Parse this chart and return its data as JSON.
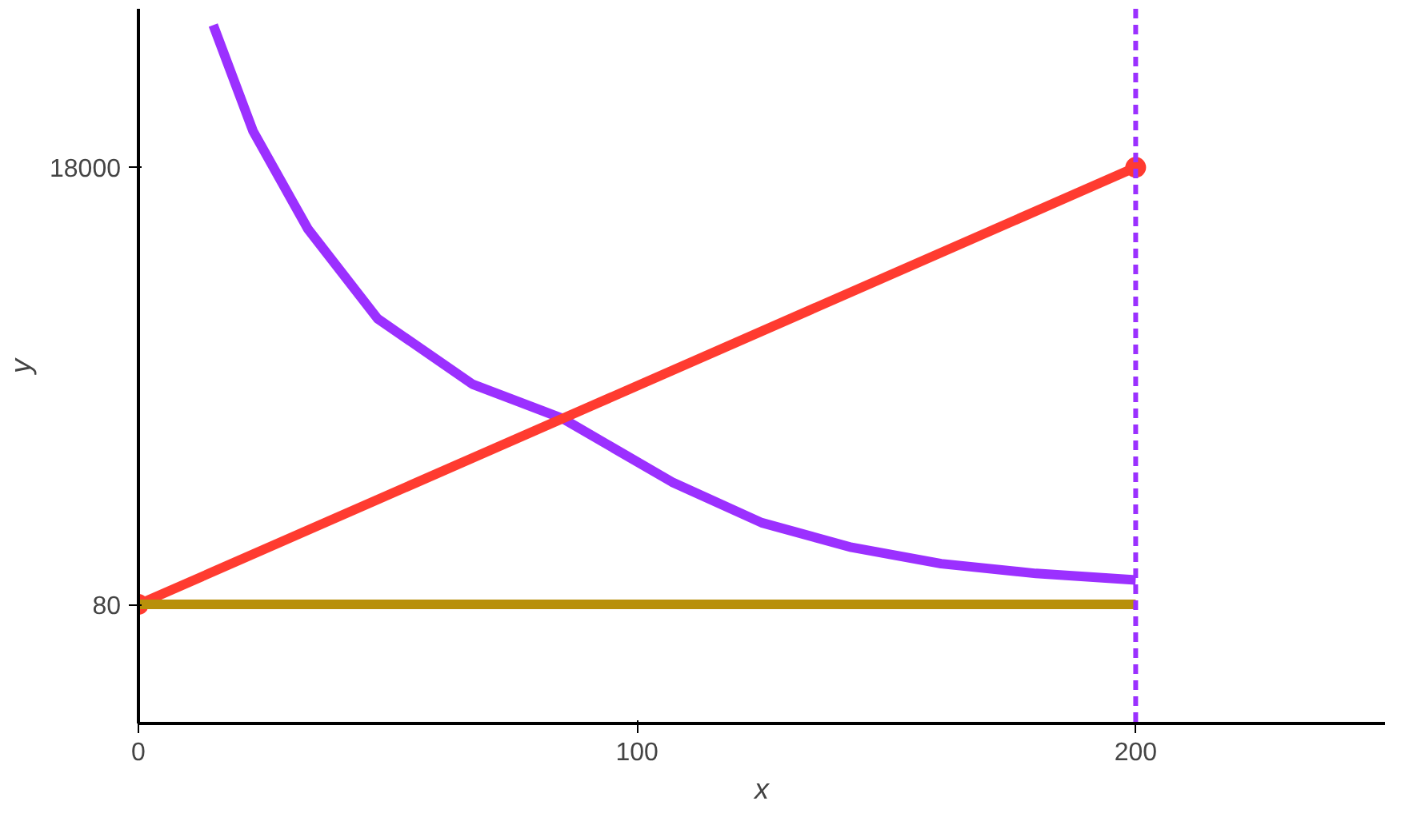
{
  "chart_data": {
    "type": "line",
    "xlabel": "x",
    "ylabel": "y",
    "xlim": [
      0,
      250
    ],
    "ylim": [
      -4800,
      24500
    ],
    "xticks": [
      0,
      100,
      200
    ],
    "yticks": [
      80,
      18000
    ],
    "series": [
      {
        "color": "#9b30ff",
        "x": [
          15,
          23,
          34,
          48,
          67,
          85,
          107,
          125,
          143,
          161,
          180,
          200
        ],
        "values": [
          23830,
          19480,
          15470,
          11790,
          9110,
          7710,
          5100,
          3430,
          2420,
          1750,
          1350,
          1080
        ]
      },
      {
        "color": "#ff3b30",
        "x": [
          0,
          200
        ],
        "values": [
          80,
          18000
        ],
        "marker": "circle"
      },
      {
        "color": "#b8900a",
        "x": [
          0,
          200
        ],
        "values": [
          80,
          80
        ]
      }
    ],
    "ref_lines": [
      {
        "axis": "x",
        "value": 200,
        "color": "#9b30ff",
        "line_style": "dashed"
      }
    ],
    "line_style": "solid"
  }
}
